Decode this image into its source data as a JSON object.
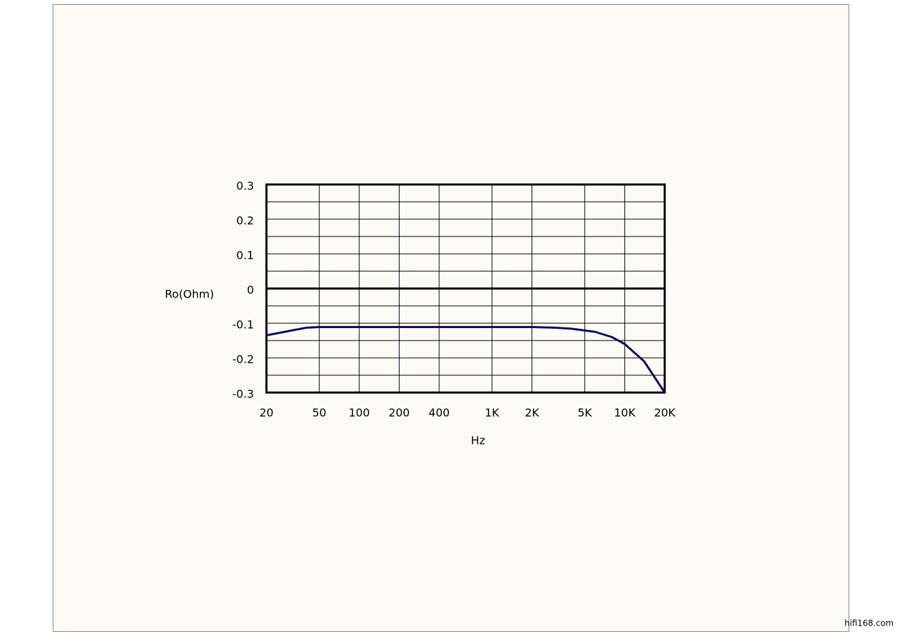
{
  "chart_data": {
    "type": "line",
    "y_label": "Ro(Ohm)",
    "x_label": "Hz",
    "xlim": [
      20,
      20000
    ],
    "x_log": true,
    "xticks": [
      20,
      50,
      100,
      200,
      400,
      {
        "value": 1000,
        "label": "1K"
      },
      {
        "value": 2000,
        "label": "2K"
      },
      {
        "value": 5000,
        "label": "5K"
      },
      {
        "value": 10000,
        "label": "10K"
      },
      {
        "value": 20000,
        "label": "20K"
      }
    ],
    "ylim": [
      -0.3,
      0.3
    ],
    "yticks": [
      -0.3,
      -0.2,
      -0.1,
      0,
      0.1,
      0.2,
      0.3
    ],
    "grid": true,
    "x": [
      20,
      30,
      40,
      50,
      100,
      200,
      400,
      1000,
      2000,
      3000,
      4000,
      6000,
      8000,
      10000,
      14000,
      20000
    ],
    "series": [
      {
        "color": "#0d0d5c",
        "values": [
          -0.135,
          -0.122,
          -0.113,
          -0.111,
          -0.111,
          -0.111,
          -0.111,
          -0.111,
          -0.111,
          -0.113,
          -0.116,
          -0.125,
          -0.14,
          -0.16,
          -0.21,
          -0.3
        ]
      }
    ]
  },
  "watermark": "hifi168.com"
}
